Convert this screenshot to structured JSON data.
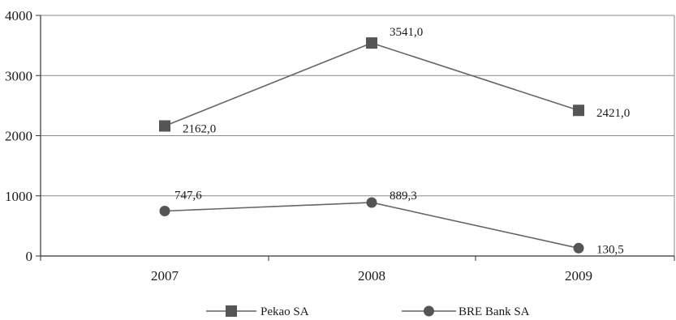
{
  "chart_data": {
    "type": "line",
    "categories": [
      "2007",
      "2008",
      "2009"
    ],
    "ylim": [
      0,
      4000
    ],
    "yticks": [
      0,
      1000,
      2000,
      3000,
      4000
    ],
    "grid": true,
    "legend_position": "bottom",
    "series": [
      {
        "name": "Pekao SA",
        "values": [
          2162.0,
          3541.0,
          2421.0
        ],
        "labels": [
          "2162,0",
          "3541,0",
          "2421,0"
        ],
        "marker": "square",
        "color": "#555555"
      },
      {
        "name": "BRE Bank SA",
        "values": [
          747.6,
          889.3,
          130.5
        ],
        "labels": [
          "747,6",
          "889,3",
          "130,5"
        ],
        "marker": "circle",
        "color": "#555555"
      }
    ]
  }
}
